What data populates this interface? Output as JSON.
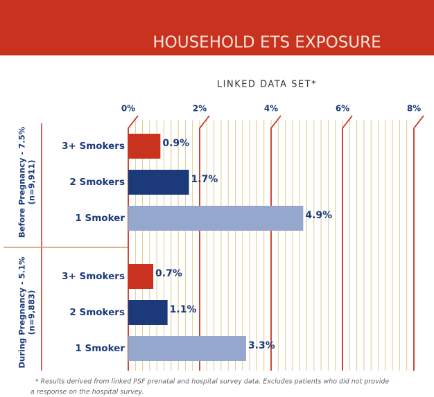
{
  "chart_data": {
    "type": "grouped-hbar",
    "title": "HOUSEHOLD ETS EXPOSURE",
    "subtitle": "LINKED DATA SET*",
    "xlim": [
      0,
      8
    ],
    "xticks": [
      {
        "value": 0,
        "label": "0%"
      },
      {
        "value": 2,
        "label": "2%"
      },
      {
        "value": 4,
        "label": "4%"
      },
      {
        "value": 6,
        "label": "6%"
      },
      {
        "value": 8,
        "label": "8%"
      }
    ],
    "minor_tick_step": 0.2,
    "colors": [
      "#c8321e",
      "#1c3a7a",
      "#95a7cc"
    ],
    "groups": [
      {
        "name": "Before Pregnancy - 7.5%",
        "n": "(n=9,911)",
        "categories": [
          "3+ Smokers",
          "2 Smokers",
          "1 Smoker"
        ],
        "values": [
          0.9,
          1.7,
          4.9
        ],
        "value_labels": [
          "0.9%",
          "1.7%",
          "4.9%"
        ]
      },
      {
        "name": "During Pregnancy - 5.1%",
        "n": "(n=9,883)",
        "categories": [
          "3+ Smokers",
          "2 Smokers",
          "1 Smoker"
        ],
        "values": [
          0.7,
          1.1,
          3.3
        ],
        "value_labels": [
          "0.7%",
          "1.1%",
          "3.3%"
        ]
      }
    ],
    "footnote": [
      "* Results derived from linked PSF prenatal and hospital survey data. Excludes patients who did not provide",
      "a response on the hospital survey."
    ]
  }
}
